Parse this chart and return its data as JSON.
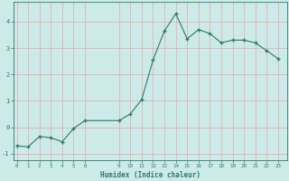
{
  "x": [
    0,
    1,
    2,
    3,
    4,
    5,
    6,
    9,
    10,
    11,
    12,
    13,
    14,
    15,
    16,
    17,
    18,
    19,
    20,
    21,
    22,
    23
  ],
  "y": [
    -0.7,
    -0.75,
    -0.35,
    -0.4,
    -0.55,
    -0.05,
    0.25,
    0.25,
    0.5,
    1.05,
    2.55,
    3.65,
    4.3,
    3.35,
    3.7,
    3.55,
    3.2,
    3.3,
    3.3,
    3.2,
    2.9,
    2.6
  ],
  "xticks": [
    0,
    1,
    2,
    3,
    4,
    5,
    6,
    9,
    10,
    11,
    12,
    13,
    14,
    15,
    16,
    17,
    18,
    19,
    20,
    21,
    22,
    23
  ],
  "yticks": [
    -1,
    0,
    1,
    2,
    3,
    4
  ],
  "ylim": [
    -1.25,
    4.75
  ],
  "xlim": [
    -0.3,
    23.8
  ],
  "xlabel": "Humidex (Indice chaleur)",
  "line_color": "#2d7a6e",
  "marker_color": "#2d7a6e",
  "bg_color": "#cceae8",
  "grid_color": "#e8a8a8",
  "xlabel_color": "#2d7a6e",
  "tick_color": "#2d7a6e",
  "spine_color": "#2d7a6e"
}
